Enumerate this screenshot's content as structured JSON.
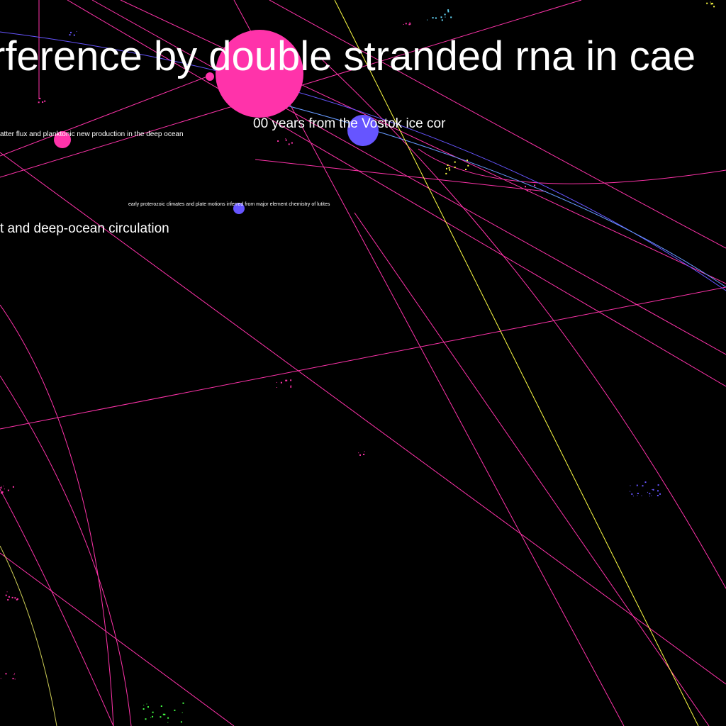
{
  "labels": {
    "title": "rference by double stranded rna in cae",
    "vostok": "00 years from the Vostok ice cor",
    "particulate": "atter flux and planktonic new production in the deep ocean",
    "proterozoic": "early proterozoic climates and plate motions inferred from major element chemistry of lutites",
    "circulation": "t and deep-ocean circulation"
  },
  "colors": {
    "background": "#000000",
    "pink": "#ff33aa",
    "blue": "#6655ff",
    "yellow": "#ffff44",
    "label": "#ffffff"
  }
}
